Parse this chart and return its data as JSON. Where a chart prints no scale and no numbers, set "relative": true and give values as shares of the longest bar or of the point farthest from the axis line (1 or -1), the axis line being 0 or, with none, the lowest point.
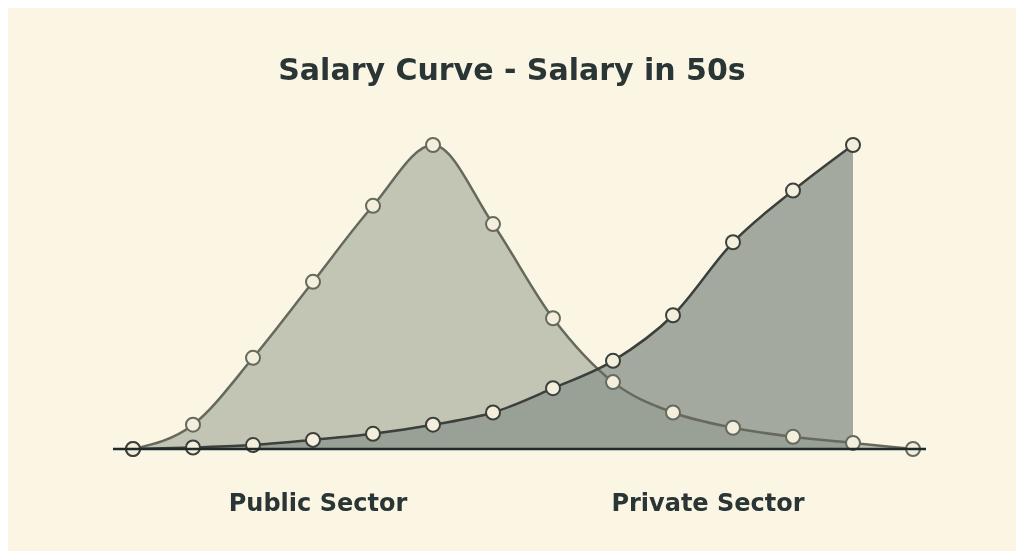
{
  "chart_data": {
    "type": "area",
    "title": "Salary Curve - Salary in 50s",
    "relative": true,
    "categories": [
      null,
      null,
      null,
      null,
      null,
      null,
      null,
      null,
      null,
      null,
      null,
      null,
      null,
      null
    ],
    "series": [
      {
        "name": "Public Sector",
        "color": "#b4b9a6",
        "values": [
          0,
          0.08,
          0.3,
          0.55,
          0.8,
          1,
          0.74,
          0.43,
          0.22,
          0.12,
          0.07,
          0.04,
          0.02,
          0
        ]
      },
      {
        "name": "Private Sector",
        "color": "#8e968d",
        "values": [
          0,
          0.005,
          0.013,
          0.03,
          0.05,
          0.08,
          0.12,
          0.2,
          0.29,
          0.44,
          0.68,
          0.85,
          1,
          null
        ]
      }
    ],
    "marker": "circle"
  }
}
